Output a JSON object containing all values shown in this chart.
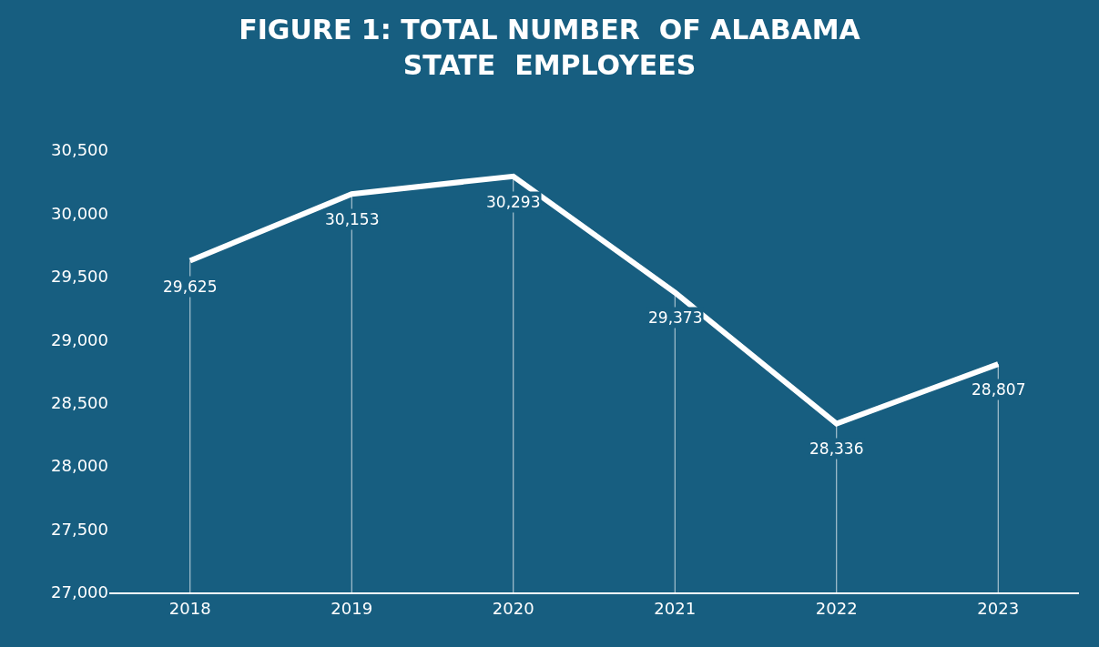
{
  "chart_data": {
    "type": "line",
    "title": "FIGURE 1: TOTAL NUMBER  OF ALABAMA\nSTATE  EMPLOYEES",
    "categories": [
      "2018",
      "2019",
      "2020",
      "2021",
      "2022",
      "2023"
    ],
    "series": [
      {
        "color": "#ffffff",
        "values": [
          29625,
          30153,
          30293,
          29373,
          28336,
          28807
        ],
        "value_labels": [
          "29,625",
          "30,153",
          "30,293",
          "29,373",
          "28,336",
          "28,807"
        ]
      }
    ],
    "ylim": [
      27000,
      30500
    ],
    "yticks": [
      {
        "value": 27000,
        "label": "27,000"
      },
      {
        "value": 27500,
        "label": "27,500"
      },
      {
        "value": 28000,
        "label": "28,000"
      },
      {
        "value": 28500,
        "label": "28,500"
      },
      {
        "value": 29000,
        "label": "29,000"
      },
      {
        "value": 29500,
        "label": "29,500"
      },
      {
        "value": 30000,
        "label": "30,000"
      },
      {
        "value": 30500,
        "label": "30,500"
      }
    ],
    "grid": "x",
    "marker": "none",
    "line_style": "solid"
  }
}
